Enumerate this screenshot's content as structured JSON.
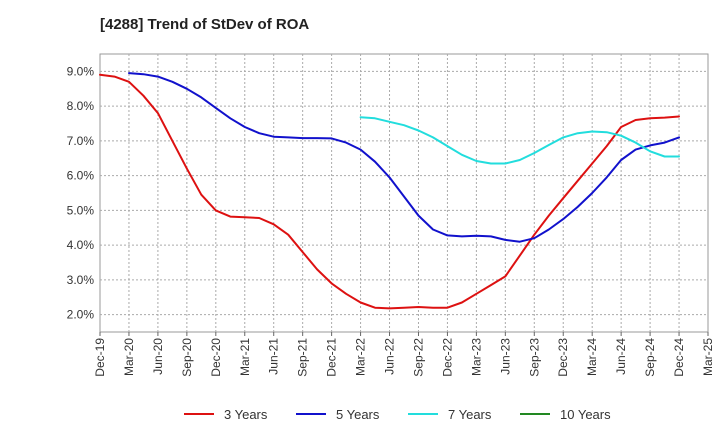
{
  "chart_data": {
    "type": "line",
    "title": "[4288]  Trend of StDev of ROA",
    "xlabel": "",
    "ylabel": "",
    "x_labels": [
      "Dec-19",
      "Mar-20",
      "Jun-20",
      "Sep-20",
      "Dec-20",
      "Mar-21",
      "Jun-21",
      "Sep-21",
      "Dec-21",
      "Mar-22",
      "Jun-22",
      "Sep-22",
      "Dec-22",
      "Mar-23",
      "Jun-23",
      "Sep-23",
      "Dec-23",
      "Mar-24",
      "Jun-24",
      "Sep-24",
      "Dec-24",
      "Mar-25"
    ],
    "y_ticks": [
      "2.0%",
      "3.0%",
      "4.0%",
      "5.0%",
      "6.0%",
      "7.0%",
      "8.0%",
      "9.0%"
    ],
    "ylim": [
      1.5,
      9.5
    ],
    "grid": true,
    "legend_position": "bottom",
    "series": [
      {
        "name": "3 Years",
        "color": "#dd1111",
        "points": [
          [
            0,
            8.9
          ],
          [
            0.5,
            8.85
          ],
          [
            1,
            8.7
          ],
          [
            1.5,
            8.3
          ],
          [
            2,
            7.8
          ],
          [
            2.5,
            7.0
          ],
          [
            3,
            6.2
          ],
          [
            3.5,
            5.45
          ],
          [
            4,
            5.0
          ],
          [
            4.5,
            4.82
          ],
          [
            5,
            4.8
          ],
          [
            5.5,
            4.78
          ],
          [
            6,
            4.6
          ],
          [
            6.5,
            4.3
          ],
          [
            7,
            3.8
          ],
          [
            7.5,
            3.3
          ],
          [
            8,
            2.9
          ],
          [
            8.5,
            2.6
          ],
          [
            9,
            2.35
          ],
          [
            9.5,
            2.2
          ],
          [
            10,
            2.18
          ],
          [
            10.5,
            2.2
          ],
          [
            11,
            2.22
          ],
          [
            11.5,
            2.2
          ],
          [
            12,
            2.2
          ],
          [
            12.5,
            2.35
          ],
          [
            13,
            2.6
          ],
          [
            13.5,
            2.85
          ],
          [
            14,
            3.1
          ],
          [
            14.5,
            3.7
          ],
          [
            15,
            4.3
          ],
          [
            15.5,
            4.85
          ],
          [
            16,
            5.35
          ],
          [
            16.5,
            5.85
          ],
          [
            17,
            6.35
          ],
          [
            17.5,
            6.85
          ],
          [
            18,
            7.4
          ],
          [
            18.5,
            7.6
          ],
          [
            19,
            7.65
          ],
          [
            19.5,
            7.67
          ],
          [
            20,
            7.7
          ]
        ]
      },
      {
        "name": "5 Years",
        "color": "#1111cc",
        "points": [
          [
            1,
            8.95
          ],
          [
            1.5,
            8.92
          ],
          [
            2,
            8.85
          ],
          [
            2.5,
            8.7
          ],
          [
            3,
            8.5
          ],
          [
            3.5,
            8.25
          ],
          [
            4,
            7.95
          ],
          [
            4.5,
            7.65
          ],
          [
            5,
            7.4
          ],
          [
            5.5,
            7.22
          ],
          [
            6,
            7.12
          ],
          [
            6.5,
            7.1
          ],
          [
            7,
            7.08
          ],
          [
            7.5,
            7.08
          ],
          [
            8,
            7.07
          ],
          [
            8.5,
            6.95
          ],
          [
            9,
            6.75
          ],
          [
            9.5,
            6.4
          ],
          [
            10,
            5.95
          ],
          [
            10.5,
            5.4
          ],
          [
            11,
            4.85
          ],
          [
            11.5,
            4.45
          ],
          [
            12,
            4.28
          ],
          [
            12.5,
            4.25
          ],
          [
            13,
            4.27
          ],
          [
            13.5,
            4.25
          ],
          [
            14,
            4.15
          ],
          [
            14.5,
            4.1
          ],
          [
            15,
            4.2
          ],
          [
            15.5,
            4.45
          ],
          [
            16,
            4.75
          ],
          [
            16.5,
            5.1
          ],
          [
            17,
            5.5
          ],
          [
            17.5,
            5.95
          ],
          [
            18,
            6.45
          ],
          [
            18.5,
            6.75
          ],
          [
            19,
            6.87
          ],
          [
            19.5,
            6.95
          ],
          [
            20,
            7.1
          ]
        ]
      },
      {
        "name": "7 Years",
        "color": "#22dddd",
        "points": [
          [
            9,
            7.68
          ],
          [
            9.5,
            7.65
          ],
          [
            10,
            7.55
          ],
          [
            10.5,
            7.45
          ],
          [
            11,
            7.3
          ],
          [
            11.5,
            7.1
          ],
          [
            12,
            6.85
          ],
          [
            12.5,
            6.6
          ],
          [
            13,
            6.42
          ],
          [
            13.5,
            6.35
          ],
          [
            14,
            6.35
          ],
          [
            14.5,
            6.45
          ],
          [
            15,
            6.65
          ],
          [
            15.5,
            6.88
          ],
          [
            16,
            7.1
          ],
          [
            16.5,
            7.22
          ],
          [
            17,
            7.27
          ],
          [
            17.5,
            7.25
          ],
          [
            18,
            7.15
          ],
          [
            18.5,
            6.95
          ],
          [
            19,
            6.7
          ],
          [
            19.5,
            6.55
          ],
          [
            20,
            6.55
          ]
        ]
      },
      {
        "name": "10 Years",
        "color": "#228822",
        "points": []
      }
    ]
  }
}
